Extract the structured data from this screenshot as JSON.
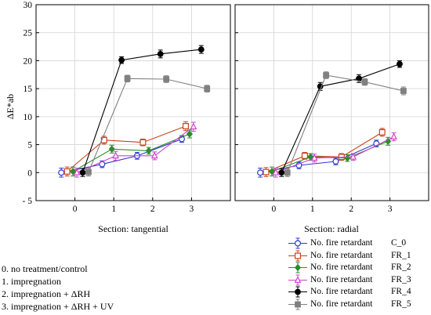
{
  "chart_data": {
    "type": "line",
    "ylabel": "ΔE*ab",
    "ylim": [
      -5,
      30
    ],
    "yticks": [
      -5,
      0,
      5,
      10,
      15,
      20,
      25,
      30
    ],
    "xticks": [
      0,
      1,
      2,
      3
    ],
    "xlim": [
      -1,
      4
    ],
    "grid": true,
    "panels": [
      {
        "xlabel": "Section: tangential",
        "series": [
          {
            "code": "C_0",
            "color": "#2b3bd0",
            "marker": "circle-open",
            "x": [
              -0.35,
              0.7,
              1.6,
              2.75
            ],
            "y": [
              0,
              1.5,
              3,
              6
            ],
            "err": [
              0.8,
              0.6,
              0.6,
              0.6
            ]
          },
          {
            "code": "FR_1",
            "color": "#c8431a",
            "marker": "square-open",
            "x": [
              -0.2,
              0.75,
              1.75,
              2.85
            ],
            "y": [
              0.2,
              5.8,
              5.4,
              8.3
            ],
            "err": [
              0.8,
              0.7,
              0.6,
              0.8
            ]
          },
          {
            "code": "FR_2",
            "color": "#2e8b2e",
            "marker": "diamond",
            "x": [
              -0.05,
              0.95,
              1.9,
              2.95
            ],
            "y": [
              0.2,
              4.2,
              3.9,
              6.9
            ],
            "err": [
              0.8,
              0.7,
              0.6,
              0.7
            ]
          },
          {
            "code": "FR_3",
            "color": "#cc44cc",
            "marker": "triangle-open",
            "x": [
              0.05,
              1.05,
              2.05,
              3.05
            ],
            "y": [
              0,
              3,
              3,
              8.2
            ],
            "err": [
              0.8,
              0.8,
              0.7,
              0.8
            ]
          },
          {
            "code": "FR_4",
            "color": "#000000",
            "marker": "circle-filled",
            "x": [
              0.2,
              1.2,
              2.2,
              3.25
            ],
            "y": [
              0,
              20.1,
              21.2,
              22
            ],
            "err": [
              0.7,
              0.6,
              0.7,
              0.7
            ]
          },
          {
            "code": "FR_5",
            "color": "#808080",
            "marker": "square-filled",
            "x": [
              0.35,
              1.35,
              2.35,
              3.4
            ],
            "y": [
              0.1,
              16.8,
              16.7,
              15
            ],
            "err": [
              0.7,
              0.6,
              0.6,
              0.6
            ]
          }
        ]
      },
      {
        "xlabel": "Section: radial",
        "series": [
          {
            "code": "C_0",
            "color": "#2b3bd0",
            "marker": "circle-open",
            "x": [
              -0.35,
              0.65,
              1.6,
              2.65
            ],
            "y": [
              0,
              1.3,
              2,
              5.2
            ],
            "err": [
              0.8,
              0.6,
              0.6,
              0.6
            ]
          },
          {
            "code": "FR_1",
            "color": "#c8431a",
            "marker": "square-open",
            "x": [
              -0.2,
              0.8,
              1.75,
              2.8
            ],
            "y": [
              0.1,
              3,
              2.8,
              7.2
            ],
            "err": [
              0.8,
              0.6,
              0.6,
              0.7
            ]
          },
          {
            "code": "FR_2",
            "color": "#2e8b2e",
            "marker": "diamond",
            "x": [
              -0.05,
              0.95,
              1.9,
              2.95
            ],
            "y": [
              0.2,
              2.8,
              2.6,
              5.6
            ],
            "err": [
              0.8,
              0.6,
              0.6,
              0.7
            ]
          },
          {
            "code": "FR_3",
            "color": "#cc44cc",
            "marker": "triangle-open",
            "x": [
              0.05,
              1.05,
              2.05,
              3.1
            ],
            "y": [
              0,
              2.6,
              2.8,
              6.4
            ],
            "err": [
              0.8,
              0.7,
              0.6,
              0.7
            ]
          },
          {
            "code": "FR_4",
            "color": "#000000",
            "marker": "circle-filled",
            "x": [
              0.2,
              1.2,
              2.2,
              3.25
            ],
            "y": [
              0,
              15.4,
              16.8,
              19.4
            ],
            "err": [
              0.7,
              0.7,
              0.7,
              0.6
            ]
          },
          {
            "code": "FR_5",
            "color": "#808080",
            "marker": "square-filled",
            "x": [
              0.35,
              1.35,
              2.35,
              3.35
            ],
            "y": [
              0,
              17.4,
              16.2,
              14.6
            ],
            "err": [
              0.7,
              0.6,
              0.6,
              0.7
            ]
          }
        ]
      }
    ]
  },
  "legend": {
    "items": [
      {
        "name": "No. fire retardant",
        "code": "C_0"
      },
      {
        "name": "No. fire retardant",
        "code": "FR_1"
      },
      {
        "name": "No. fire retardant",
        "code": "FR_2"
      },
      {
        "name": "No. fire retardant",
        "code": "FR_3"
      },
      {
        "name": "No. fire retardant",
        "code": "FR_4"
      },
      {
        "name": "No. fire retardant",
        "code": "FR_5"
      }
    ]
  },
  "notes": [
    "0. no treatment/control",
    "1. impregnation",
    "2. impregnation + ΔRH",
    "3. impregnation + ΔRH + UV"
  ]
}
